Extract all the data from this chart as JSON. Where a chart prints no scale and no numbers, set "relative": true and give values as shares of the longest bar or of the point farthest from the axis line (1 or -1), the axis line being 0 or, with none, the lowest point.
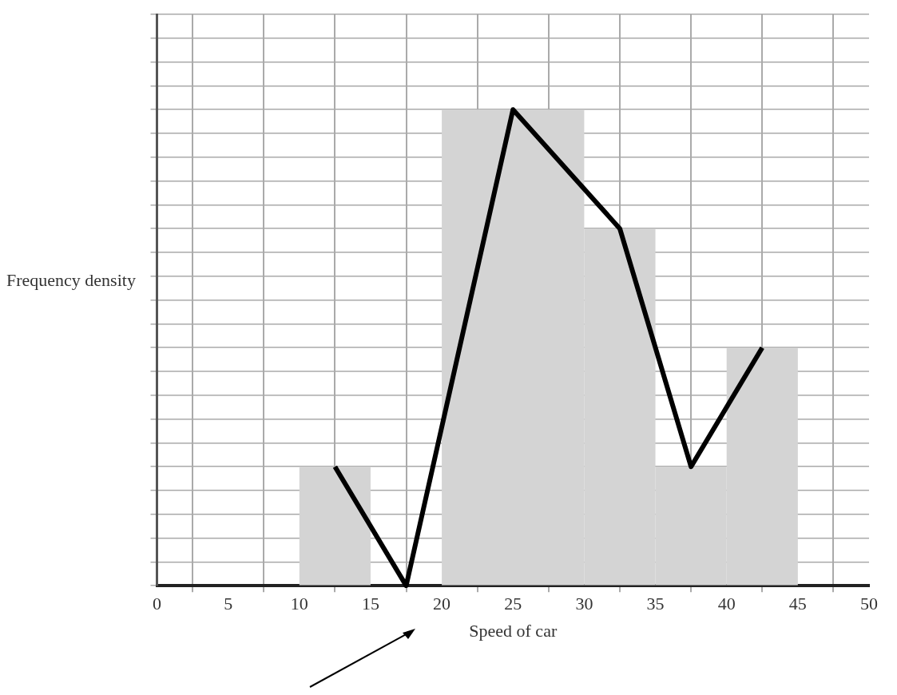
{
  "chart_data": {
    "type": "histogram",
    "xlabel": "Speed of car",
    "ylabel": "Frequency density",
    "relative": true,
    "bins": [
      10,
      15,
      20,
      30,
      35,
      40,
      45
    ],
    "values": [
      0.25,
      0,
      1,
      0.75,
      0.25,
      0.5
    ],
    "color": "#d4d4d4",
    "series": [
      {
        "type": "line",
        "color": "#000000",
        "x": [
          12.5,
          17.5,
          25,
          32.5,
          37.5,
          42.5
        ],
        "values": [
          0.25,
          0,
          1,
          0.75,
          0.25,
          0.5
        ]
      }
    ],
    "xlim": [
      0,
      50
    ],
    "xticks": [
      0,
      5,
      10,
      15,
      20,
      25,
      30,
      35,
      40,
      45,
      50
    ],
    "grid": true,
    "legend": false,
    "marker": "none",
    "line_style": "solid"
  }
}
